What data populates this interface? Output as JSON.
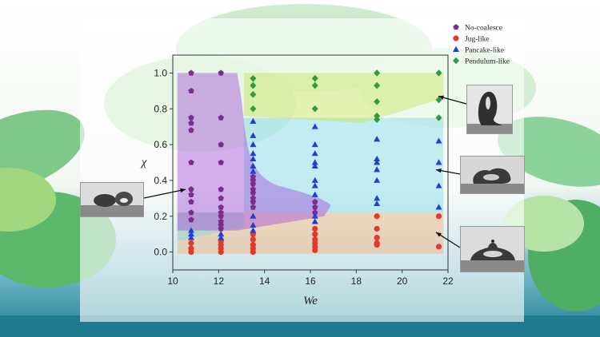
{
  "chart_data": {
    "type": "scatter",
    "xlabel": "We",
    "ylabel": "χ",
    "xlim": [
      10,
      22
    ],
    "ylim": [
      -0.1,
      1.1
    ],
    "xticks": [
      "10",
      "12",
      "14",
      "16",
      "18",
      "20",
      "22"
    ],
    "yticks": [
      "0.0",
      "0.2",
      "0.4",
      "0.6",
      "0.8",
      "1.0"
    ],
    "grid": false,
    "legend_position": "top-right",
    "series": [
      {
        "name": "No-coalesce",
        "marker": "pentagon",
        "color": "#7b2d8e",
        "points": [
          [
            10.8,
            1.0
          ],
          [
            10.8,
            0.9
          ],
          [
            10.8,
            0.75
          ],
          [
            10.8,
            0.72
          ],
          [
            10.8,
            0.68
          ],
          [
            10.8,
            0.5
          ],
          [
            10.8,
            0.35
          ],
          [
            10.8,
            0.32
          ],
          [
            10.8,
            0.28
          ],
          [
            10.8,
            0.22
          ],
          [
            10.8,
            0.18
          ],
          [
            12.1,
            1.0
          ],
          [
            12.1,
            0.75
          ],
          [
            12.1,
            0.6
          ],
          [
            12.1,
            0.5
          ],
          [
            12.1,
            0.35
          ],
          [
            12.1,
            0.3
          ],
          [
            12.1,
            0.25
          ],
          [
            12.1,
            0.22
          ],
          [
            12.1,
            0.2
          ],
          [
            12.1,
            0.17
          ],
          [
            12.1,
            0.15
          ],
          [
            12.1,
            0.13
          ],
          [
            13.5,
            0.42
          ],
          [
            13.5,
            0.4
          ],
          [
            13.5,
            0.38
          ],
          [
            13.5,
            0.35
          ],
          [
            13.5,
            0.33
          ],
          [
            13.5,
            0.3
          ],
          [
            13.5,
            0.28
          ],
          [
            13.5,
            0.25
          ],
          [
            16.2,
            0.28
          ],
          [
            16.2,
            0.25
          ],
          [
            16.2,
            0.22
          ]
        ]
      },
      {
        "name": "Jug-like",
        "marker": "circle",
        "color": "#e03a2b",
        "points": [
          [
            10.8,
            0.05
          ],
          [
            10.8,
            0.02
          ],
          [
            10.8,
            0.0
          ],
          [
            12.1,
            0.06
          ],
          [
            12.1,
            0.04
          ],
          [
            12.1,
            0.02
          ],
          [
            12.1,
            0.0
          ],
          [
            13.5,
            0.1
          ],
          [
            13.5,
            0.07
          ],
          [
            13.5,
            0.04
          ],
          [
            13.5,
            0.02
          ],
          [
            13.5,
            0.0
          ],
          [
            16.2,
            0.13
          ],
          [
            16.2,
            0.1
          ],
          [
            16.2,
            0.07
          ],
          [
            16.2,
            0.05
          ],
          [
            16.2,
            0.03
          ],
          [
            16.2,
            0.01
          ],
          [
            18.9,
            0.2
          ],
          [
            18.9,
            0.13
          ],
          [
            18.9,
            0.08
          ],
          [
            18.9,
            0.05
          ],
          [
            18.9,
            0.04
          ],
          [
            21.6,
            0.2
          ],
          [
            21.6,
            0.03
          ]
        ]
      },
      {
        "name": "Pancake-like",
        "marker": "triangle",
        "color": "#1f3fd6",
        "points": [
          [
            10.8,
            0.12
          ],
          [
            10.8,
            0.1
          ],
          [
            10.8,
            0.08
          ],
          [
            12.1,
            0.1
          ],
          [
            12.1,
            0.08
          ],
          [
            13.5,
            0.73
          ],
          [
            13.5,
            0.65
          ],
          [
            13.5,
            0.6
          ],
          [
            13.5,
            0.55
          ],
          [
            13.5,
            0.52
          ],
          [
            13.5,
            0.48
          ],
          [
            13.5,
            0.45
          ],
          [
            13.5,
            0.2
          ],
          [
            13.5,
            0.15
          ],
          [
            13.5,
            0.12
          ],
          [
            16.2,
            0.7
          ],
          [
            16.2,
            0.6
          ],
          [
            16.2,
            0.55
          ],
          [
            16.2,
            0.5
          ],
          [
            16.2,
            0.48
          ],
          [
            16.2,
            0.4
          ],
          [
            16.2,
            0.37
          ],
          [
            16.2,
            0.32
          ],
          [
            16.2,
            0.2
          ],
          [
            16.2,
            0.17
          ],
          [
            18.9,
            0.63
          ],
          [
            18.9,
            0.52
          ],
          [
            18.9,
            0.5
          ],
          [
            18.9,
            0.46
          ],
          [
            18.9,
            0.4
          ],
          [
            18.9,
            0.3
          ],
          [
            18.9,
            0.27
          ],
          [
            21.6,
            0.62
          ],
          [
            21.6,
            0.5
          ],
          [
            21.6,
            0.37
          ],
          [
            21.6,
            0.25
          ]
        ]
      },
      {
        "name": "Pendulum-like",
        "marker": "diamond",
        "color": "#2e9c3e",
        "points": [
          [
            13.5,
            0.97
          ],
          [
            13.5,
            0.93
          ],
          [
            13.5,
            0.88
          ],
          [
            13.5,
            0.8
          ],
          [
            16.2,
            0.97
          ],
          [
            16.2,
            0.93
          ],
          [
            16.2,
            0.8
          ],
          [
            18.9,
            1.0
          ],
          [
            18.9,
            0.93
          ],
          [
            18.9,
            0.84
          ],
          [
            18.9,
            0.76
          ],
          [
            18.9,
            0.74
          ],
          [
            21.6,
            1.0
          ],
          [
            21.6,
            0.85
          ],
          [
            21.6,
            0.75
          ]
        ]
      }
    ],
    "regions": [
      {
        "name": "no-coalesce-region",
        "color": "#a24fd8"
      },
      {
        "name": "pendulum-region",
        "color": "#c8e35a"
      },
      {
        "name": "pancake-region",
        "color": "#7ed8e6"
      },
      {
        "name": "jug-region",
        "color": "#f2b27a"
      }
    ]
  },
  "insets": [
    {
      "name": "inset-no-coalesce-photo",
      "points_to": "no-coalesce-region"
    },
    {
      "name": "inset-pendulum-photo",
      "points_to": "pendulum-region"
    },
    {
      "name": "inset-pancake-photo",
      "points_to": "pancake-region"
    },
    {
      "name": "inset-jug-photo",
      "points_to": "jug-region"
    }
  ]
}
